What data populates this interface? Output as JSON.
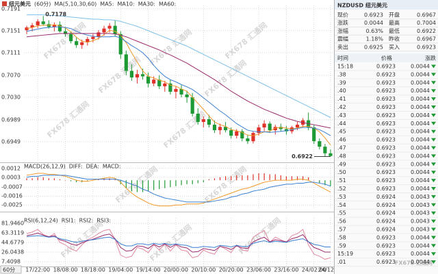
{
  "header": {
    "title": "纽元美元",
    "period": "(60分)",
    "period_select": "60分",
    "watermark": "FX678 汇通网"
  },
  "chart_data": [
    {
      "type": "candlestick",
      "indicator": "MA(5,10,30,60)",
      "categories": [
        null,
        null,
        "17/22:00",
        null,
        null,
        null,
        null,
        "18/08:00",
        null,
        null,
        null,
        null,
        "18/18:00",
        null,
        null,
        null,
        null,
        "19/04:00",
        null,
        null,
        null,
        null,
        "19/14:00",
        null,
        null,
        null,
        null,
        "20/00:00",
        null,
        null,
        null,
        null,
        "20/10:00",
        null,
        null,
        null,
        null,
        "20/20:00",
        null,
        null,
        null,
        null,
        "23/06:00",
        null,
        null,
        null,
        null,
        "23/16:00",
        null,
        null,
        null,
        null,
        "24/02:00",
        null,
        null,
        "24/12:00"
      ],
      "open": [
        0.7152,
        0.7157,
        0.7161,
        0.7168,
        0.7163,
        0.7158,
        0.7162,
        0.715,
        0.7145,
        0.7132,
        0.7125,
        0.713,
        0.7136,
        0.714,
        0.7148,
        0.7155,
        0.716,
        0.7145,
        0.7108,
        0.7078,
        0.7066,
        0.7072,
        0.7068,
        0.7055,
        0.7062,
        0.705,
        0.7055,
        0.704,
        0.7045,
        0.7035,
        0.703,
        0.7,
        0.6985,
        0.699,
        0.698,
        0.697,
        0.6976,
        0.697,
        0.696,
        0.6968,
        0.6955,
        0.695,
        0.6965,
        0.6975,
        0.6982,
        0.697,
        0.6976,
        0.6972,
        0.6968,
        0.6975,
        0.698,
        0.6988,
        0.6975,
        0.695,
        0.694,
        0.6928
      ],
      "high": [
        0.716,
        0.7165,
        0.7172,
        0.7178,
        0.717,
        0.7166,
        0.7168,
        0.7158,
        0.715,
        0.714,
        0.7135,
        0.714,
        0.7145,
        0.7152,
        0.716,
        0.7165,
        0.717,
        0.715,
        0.7115,
        0.709,
        0.708,
        0.7082,
        0.7075,
        0.7068,
        0.707,
        0.706,
        0.7062,
        0.705,
        0.7052,
        0.7042,
        0.7038,
        0.701,
        0.6995,
        0.6998,
        0.6988,
        0.6982,
        0.6985,
        0.6975,
        0.6972,
        0.6972,
        0.6962,
        0.6968,
        0.698,
        0.6988,
        0.6986,
        0.698,
        0.6982,
        0.6978,
        0.6978,
        0.6985,
        0.6992,
        0.7002,
        0.698,
        0.6955,
        0.6945,
        0.6935
      ],
      "low": [
        0.7145,
        0.715,
        0.7156,
        0.716,
        0.7155,
        0.715,
        0.7148,
        0.714,
        0.7128,
        0.712,
        0.7118,
        0.7124,
        0.713,
        0.7135,
        0.7142,
        0.7148,
        0.714,
        0.71,
        0.707,
        0.706,
        0.7055,
        0.7062,
        0.7048,
        0.705,
        0.7045,
        0.704,
        0.7035,
        0.7028,
        0.703,
        0.702,
        0.6995,
        0.698,
        0.6975,
        0.6975,
        0.6965,
        0.6962,
        0.6966,
        0.6955,
        0.6955,
        0.695,
        0.6945,
        0.6946,
        0.696,
        0.6968,
        0.6965,
        0.6962,
        0.6968,
        0.6962,
        0.6964,
        0.697,
        0.6975,
        0.697,
        0.6945,
        0.6935,
        0.6922,
        0.6922
      ],
      "close": [
        0.7157,
        0.7161,
        0.7168,
        0.7163,
        0.7158,
        0.7162,
        0.715,
        0.7145,
        0.7132,
        0.7125,
        0.713,
        0.7136,
        0.714,
        0.7148,
        0.7155,
        0.716,
        0.7145,
        0.7108,
        0.7078,
        0.7066,
        0.7072,
        0.7068,
        0.7055,
        0.7062,
        0.705,
        0.7055,
        0.704,
        0.7045,
        0.7035,
        0.703,
        0.7,
        0.6985,
        0.699,
        0.698,
        0.697,
        0.6976,
        0.697,
        0.696,
        0.6968,
        0.6955,
        0.695,
        0.6965,
        0.6975,
        0.6982,
        0.697,
        0.6976,
        0.6972,
        0.6968,
        0.6975,
        0.698,
        0.6988,
        0.6975,
        0.695,
        0.694,
        0.6928,
        0.6923
      ],
      "up_color": "#e0302a",
      "down_color": "#1e9a35",
      "series": [
        {
          "name": "MA5:",
          "color": "#f09a2a",
          "values": [
            0.7155,
            0.7157,
            0.716,
            0.7161,
            0.7161,
            0.7162,
            0.716,
            0.7156,
            0.7149,
            0.7139,
            0.7132,
            0.713,
            0.7133,
            0.7137,
            0.7144,
            0.7152,
            0.715,
            0.7143,
            0.7129,
            0.7111,
            0.7094,
            0.7078,
            0.7068,
            0.7065,
            0.7061,
            0.7058,
            0.7052,
            0.705,
            0.7045,
            0.7041,
            0.703,
            0.7019,
            0.7008,
            0.6996,
            0.6985,
            0.698,
            0.6977,
            0.6971,
            0.6969,
            0.6966,
            0.6961,
            0.696,
            0.6963,
            0.6967,
            0.6968,
            0.6974,
            0.6975,
            0.6974,
            0.6972,
            0.6974,
            0.6977,
            0.6977,
            0.6974,
            0.6967,
            0.6956,
            0.6943
          ]
        },
        {
          "name": "MA10:",
          "color": "#3a7fd0",
          "values": [
            0.715,
            0.7152,
            0.7154,
            0.7156,
            0.7157,
            0.7158,
            0.7158,
            0.7157,
            0.7155,
            0.715,
            0.7146,
            0.7143,
            0.7141,
            0.714,
            0.714,
            0.714,
            0.7141,
            0.7138,
            0.7131,
            0.7124,
            0.7118,
            0.7111,
            0.7101,
            0.7088,
            0.7077,
            0.7068,
            0.7062,
            0.7058,
            0.7053,
            0.7049,
            0.7044,
            0.7037,
            0.7029,
            0.7021,
            0.7013,
            0.7005,
            0.6998,
            0.699,
            0.6982,
            0.6976,
            0.697,
            0.6968,
            0.6967,
            0.6967,
            0.6966,
            0.6967,
            0.6968,
            0.6969,
            0.6971,
            0.6973,
            0.6975,
            0.6975,
            0.6974,
            0.6971,
            0.6966,
            0.696
          ]
        },
        {
          "name": "MA30:",
          "color": "#9a2a6a",
          "values": [
            0.714,
            0.7141,
            0.7142,
            0.7143,
            0.7144,
            0.7145,
            0.7146,
            0.7146,
            0.7146,
            0.7146,
            0.7146,
            0.7146,
            0.7146,
            0.7146,
            0.7146,
            0.7146,
            0.7145,
            0.7143,
            0.714,
            0.7136,
            0.7132,
            0.7128,
            0.7124,
            0.712,
            0.7116,
            0.7111,
            0.7107,
            0.7102,
            0.7097,
            0.7092,
            0.7086,
            0.708,
            0.7074,
            0.7068,
            0.7062,
            0.7055,
            0.7048,
            0.7041,
            0.7035,
            0.7029,
            0.7023,
            0.7018,
            0.7013,
            0.7008,
            0.7004,
            0.7,
            0.6996,
            0.6992,
            0.6989,
            0.6986,
            0.6984,
            0.6982,
            0.698,
            0.6978,
            0.6976,
            0.6974
          ]
        },
        {
          "name": "MA60:",
          "color": "#7ec0e8",
          "values": [
            0.718,
            0.718,
            0.718,
            0.718,
            0.7179,
            0.7179,
            0.7178,
            0.7177,
            0.7176,
            0.7175,
            0.7174,
            0.7173,
            0.7172,
            0.7172,
            0.7171,
            0.7171,
            0.717,
            0.7168,
            0.7165,
            0.7162,
            0.7159,
            0.7155,
            0.7151,
            0.7147,
            0.7143,
            0.7139,
            0.7135,
            0.7131,
            0.7127,
            0.7123,
            0.7118,
            0.7113,
            0.7108,
            0.7103,
            0.7098,
            0.7093,
            0.7088,
            0.7083,
            0.7078,
            0.7073,
            0.7068,
            0.7063,
            0.7058,
            0.7053,
            0.7048,
            0.7043,
            0.7038,
            0.7033,
            0.7028,
            0.7023,
            0.7018,
            0.7013,
            0.7008,
            0.7003,
            0.6998,
            0.6993
          ]
        }
      ],
      "ylim": [
        0.6914,
        0.7197
      ],
      "yticks": [
        0.7191,
        0.7151,
        0.7111,
        {
          "value": 0.707,
          "label": "0.7070"
        },
        {
          "value": 0.703,
          "label": "0.7030"
        },
        0.6989,
        0.6949
      ],
      "grid": true,
      "annotations": [
        {
          "value": 0.7178
        },
        {
          "value": 0.6922
        }
      ]
    },
    {
      "type": "bar",
      "indicator": "MACD(26,12,9)",
      "up_color": "#e0302a",
      "down_color": "#1e9a35",
      "series": [
        {
          "name": "DIFF:",
          "type": "line",
          "color": "#f09a2a",
          "values": [
            0.0005,
            0.0006,
            0.0007,
            0.0007,
            0.0006,
            0.0006,
            0.0005,
            0.0004,
            0.0002,
            0,
            -0.0001,
            -0.0001,
            0,
            0.0001,
            0.0002,
            0.0003,
            0.0002,
            -0.0002,
            -0.0008,
            -0.0013,
            -0.0017,
            -0.002,
            -0.0023,
            -0.0025,
            -0.0026,
            -0.0026,
            -0.0026,
            -0.0025,
            -0.0025,
            -0.0024,
            -0.0024,
            -0.0024,
            -0.0023,
            -0.0021,
            -0.0019,
            -0.0017,
            -0.0015,
            -0.0013,
            -0.0011,
            -0.0009,
            -0.0008,
            -0.0006,
            -0.0004,
            -0.0002,
            -0.0001,
            0,
            0,
            0,
            0,
            0.0001,
            0.0001,
            0,
            -0.0003,
            -0.0006,
            -0.0009,
            -0.0012
          ]
        },
        {
          "name": "DEA:",
          "type": "line",
          "color": "#3a7fd0",
          "values": [
            0.0003,
            0.0004,
            0.0004,
            0.0005,
            0.0005,
            0.0005,
            0.0005,
            0.0005,
            0.0004,
            0.0003,
            0.0002,
            0.0001,
            0.0001,
            0.0001,
            0.0001,
            0.0001,
            0.0001,
            0,
            -0.0002,
            -0.0004,
            -0.0006,
            -0.0009,
            -0.0011,
            -0.0014,
            -0.0016,
            -0.0018,
            -0.0019,
            -0.002,
            -0.0021,
            -0.0022,
            -0.0022,
            -0.0022,
            -0.0022,
            -0.0022,
            -0.0021,
            -0.002,
            -0.0019,
            -0.0017,
            -0.0016,
            -0.0014,
            -0.0013,
            -0.0011,
            -0.001,
            -0.0009,
            -0.0007,
            -0.0006,
            -0.0005,
            -0.0004,
            -0.0004,
            -0.0003,
            -0.0003,
            -0.0002,
            -0.0002,
            -0.0003,
            -0.0004,
            -0.0006
          ]
        },
        {
          "name": "MACD:",
          "type": "bar",
          "color": "#9a2a6a",
          "values": [
            0.0002,
            0.0002,
            0.0003,
            0.0003,
            0.0002,
            0.0002,
            0.0001,
            0,
            -0.0001,
            -0.0002,
            -0.0002,
            -0.0001,
            0,
            0.0001,
            0.0002,
            0.0002,
            0.0001,
            -0.0004,
            -0.0008,
            -0.0011,
            -0.0012,
            -0.0012,
            -0.0011,
            -0.001,
            -0.0009,
            -0.0008,
            -0.0007,
            -0.0006,
            -0.0005,
            -0.0004,
            -0.0004,
            -0.0003,
            -0.0002,
            0.0001,
            0.0002,
            0.0003,
            0.0004,
            0.0004,
            0.0005,
            0.0005,
            0.0005,
            0.0006,
            0.0007,
            0.0007,
            0.0006,
            0.0006,
            0.0005,
            0.0004,
            0.0004,
            0.0004,
            0.0004,
            0.0003,
            0,
            -0.0003,
            -0.0005,
            -0.0006
          ]
        }
      ],
      "ylim": [
        -0.0029,
        0.0016
      ],
      "yticks": [
        0.0012,
        0.0003,
        -0.0007,
        -0.0016,
        -0.0025
      ],
      "grid": true
    },
    {
      "type": "line",
      "indicator": "RSI(6,12,24)",
      "series": [
        {
          "name": "RSI1:",
          "color": "#e08aa0",
          "values": [
            62,
            65,
            70,
            60,
            55,
            62,
            45,
            40,
            32,
            28,
            40,
            50,
            55,
            62,
            68,
            70,
            50,
            20,
            15,
            18,
            35,
            32,
            25,
            40,
            30,
            42,
            28,
            40,
            30,
            28,
            15,
            18,
            30,
            25,
            22,
            38,
            32,
            25,
            40,
            30,
            28,
            55,
            62,
            68,
            45,
            55,
            50,
            45,
            58,
            62,
            70,
            40,
            22,
            18,
            12,
            15
          ]
        },
        {
          "name": "RSI2:",
          "color": "#9a2a6a",
          "values": [
            58,
            60,
            63,
            59,
            56,
            58,
            50,
            47,
            42,
            39,
            44,
            48,
            51,
            55,
            59,
            61,
            52,
            35,
            28,
            29,
            38,
            37,
            33,
            41,
            36,
            42,
            35,
            41,
            36,
            34,
            26,
            27,
            33,
            31,
            29,
            37,
            35,
            31,
            38,
            34,
            33,
            46,
            51,
            55,
            46,
            50,
            48,
            46,
            52,
            55,
            60,
            46,
            35,
            31,
            26,
            26
          ]
        },
        {
          "name": "RSI3:",
          "color": "#3a7fd0",
          "values": [
            56,
            57,
            58,
            57,
            55,
            56,
            52,
            50,
            47,
            45,
            47,
            49,
            50,
            52,
            54,
            55,
            51,
            42,
            38,
            38,
            42,
            42,
            40,
            43,
            41,
            43,
            40,
            42,
            40,
            39,
            35,
            35,
            37,
            36,
            35,
            39,
            38,
            36,
            39,
            37,
            37,
            43,
            46,
            48,
            45,
            47,
            46,
            45,
            48,
            50,
            52,
            46,
            41,
            39,
            36,
            36
          ]
        }
      ],
      "ylim": [
        -0.6,
        92.6
      ],
      "yticks": [
        {
          "value": 81.946,
          "label": "81.9460"
        },
        63.3119,
        44.6779,
        26.0438,
        7.4098
      ],
      "grid": true
    }
  ],
  "quote": {
    "symbol": "NZDUSD",
    "name": "纽元美元",
    "rows": [
      [
        "现价",
        "0.6923",
        "开盘",
        "0.6967"
      ],
      [
        "涨跌",
        "0.0044",
        "最高",
        "0.7004"
      ],
      [
        "涨幅",
        "0.63%",
        "最低",
        "0.6922"
      ],
      [
        "震幅",
        "1.18%",
        "昨收",
        "0.6967"
      ],
      [
        "卖出",
        "0.6925",
        "买入",
        "0.6923"
      ]
    ]
  },
  "trades": {
    "columns": [
      "时间",
      "价格",
      "涨跌"
    ],
    "rows": [
      [
        "15:18",
        "0.6923",
        "0.0044"
      ],
      [
        ".38",
        "0.6923",
        "0.0044"
      ],
      [
        ".39",
        "0.6923",
        "0.0044"
      ],
      [
        ".40",
        "0.6923",
        "0.0044"
      ],
      [
        ".41",
        "0.6923",
        "0.0044"
      ],
      [
        ".42",
        "0.6923",
        "0.0044"
      ],
      [
        ".43",
        "0.6923",
        "0.0044"
      ],
      [
        ".44",
        "0.6923",
        "0.0044"
      ],
      [
        ".45",
        "0.6923",
        "0.0044"
      ],
      [
        ".46",
        "0.6923",
        "0.0044"
      ],
      [
        ".47",
        "0.6923",
        "0.0044"
      ],
      [
        ".48",
        "0.6923",
        "0.0044"
      ],
      [
        ".49",
        "0.6923",
        "0.0044"
      ],
      [
        ".50",
        "0.6923",
        "0.0044"
      ],
      [
        ".51",
        "0.6923",
        "0.0044"
      ],
      [
        ".52",
        "0.6923",
        "0.0044"
      ],
      [
        ".53",
        "0.6924",
        "0.0043"
      ],
      [
        ".54",
        "0.6924",
        "0.0043"
      ],
      [
        ".55",
        "0.6924",
        "0.0043"
      ],
      [
        ".56",
        "0.6924",
        "0.0043"
      ],
      [
        ".57",
        "0.6924",
        "0.0043"
      ],
      [
        ".58",
        "0.6923",
        "0.0044"
      ],
      [
        ".59",
        "0.6923",
        "0.0044"
      ],
      [
        "15:19",
        "0.6923",
        "0.0044"
      ],
      [
        ".01",
        "0.6923",
        "0.0044"
      ]
    ]
  }
}
